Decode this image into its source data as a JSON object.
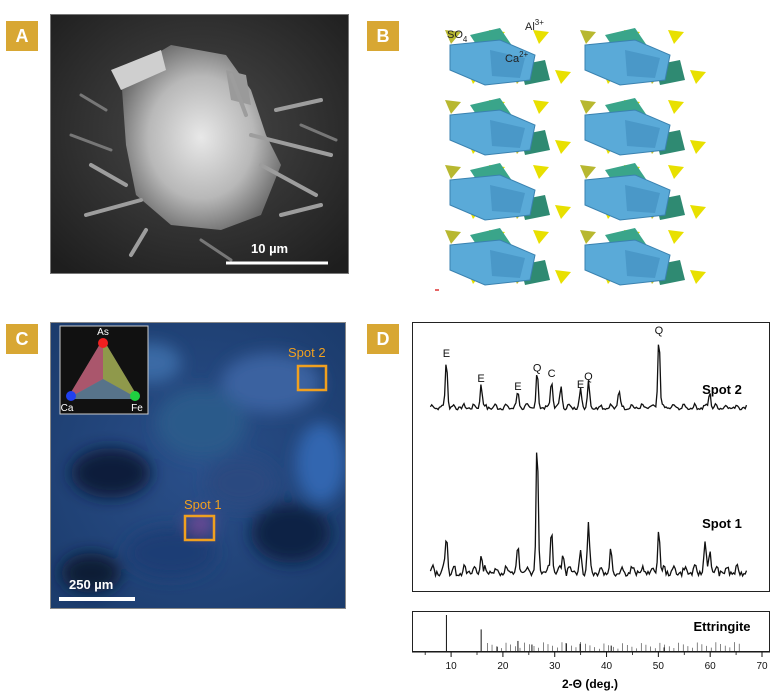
{
  "panels": {
    "a": {
      "label": "A",
      "scalebar": "10 µm"
    },
    "b": {
      "label": "B",
      "ions": {
        "sulfate": "SO",
        "sulfate_sub": "4",
        "aluminium": "Al",
        "aluminium_sup": "3+",
        "calcium": "Ca",
        "calcium_sup": "2+"
      }
    },
    "c": {
      "label": "C",
      "scalebar": "250 µm",
      "spot1": "Spot 1",
      "spot2": "Spot 2",
      "triangle": {
        "top": "As",
        "left": "Ca",
        "right": "Fe"
      }
    },
    "d": {
      "label": "D",
      "spot2": "Spot 2",
      "spot1": "Spot 1",
      "ref": "Ettringite",
      "xlabel": "2-Θ  (deg.)",
      "xticks": [
        "10",
        "20",
        "30",
        "40",
        "50",
        "60",
        "70"
      ],
      "peaks": [
        "E",
        "E",
        "E",
        "Q",
        "C",
        "E",
        "Q",
        "Q"
      ]
    }
  },
  "colors": {
    "label_bg": "#d8a733",
    "spot_box": "#f0a020",
    "sulfate": "#e8e000",
    "al_octa": "#3aa58a",
    "ca_poly": "#5aaad8"
  },
  "chart_data": {
    "type": "line",
    "xlabel": "2-Θ  (deg.)",
    "xlim": [
      4,
      70
    ],
    "series": [
      {
        "name": "Spot 2",
        "peaks_x": [
          9.1,
          15.8,
          22.9,
          26.6,
          29.4,
          31.2,
          35.0,
          36.5,
          42.4,
          50.1,
          59.9
        ],
        "peaks_rel": [
          0.68,
          0.33,
          0.22,
          0.48,
          0.4,
          0.3,
          0.25,
          0.36,
          0.24,
          1.0,
          0.22
        ]
      },
      {
        "name": "Spot 1",
        "peaks_x": [
          9.1,
          15.8,
          22.9,
          26.6,
          29.4,
          31.6,
          35.0,
          36.5,
          40.8,
          50.1,
          59.0,
          59.9
        ],
        "peaks_rel": [
          0.3,
          0.13,
          0.17,
          1.0,
          0.35,
          0.16,
          0.15,
          0.38,
          0.14,
          0.34,
          0.22,
          0.18
        ]
      },
      {
        "name": "Ettringite",
        "peaks_x": [
          9.1,
          15.8,
          18.9,
          22.9,
          25.6,
          32.2,
          34.9,
          40.9,
          51.1
        ],
        "peaks_rel": [
          1.0,
          0.6,
          0.12,
          0.28,
          0.18,
          0.22,
          0.2,
          0.15,
          0.1
        ]
      }
    ]
  }
}
